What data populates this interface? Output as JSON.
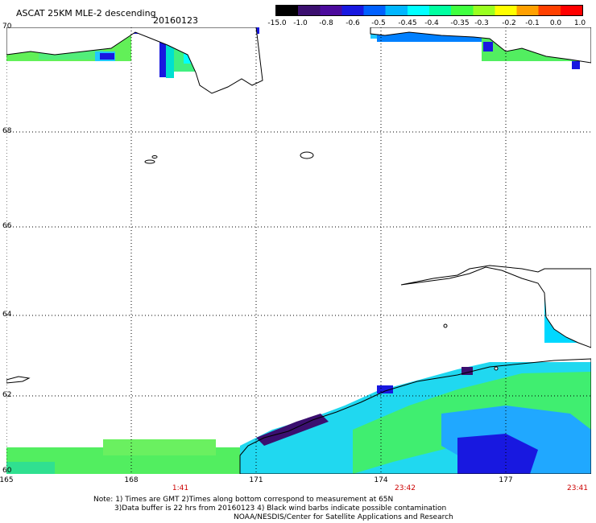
{
  "header": {
    "title": "ASCAT 25KM MLE-2 descending",
    "date": "20160123"
  },
  "colorbar": {
    "labels": [
      "-15.0",
      "-1.0",
      "-0.8",
      "-0.6",
      "-0.5",
      "-0.45",
      "-0.4",
      "-0.35",
      "-0.3",
      "-0.2",
      "-0.1",
      "0.0",
      "1.0"
    ],
    "colors": [
      "#000000",
      "#3b0f6f",
      "#4b0a9c",
      "#1818e0",
      "#0060ff",
      "#00b6ff",
      "#00ffff",
      "#00ffa0",
      "#40ff40",
      "#9aff20",
      "#ffff00",
      "#ffa000",
      "#ff4000",
      "#ff0000"
    ]
  },
  "map": {
    "latitudes": [
      "70",
      "68",
      "66",
      "64",
      "62",
      "60"
    ],
    "longitudes": [
      "165",
      "168",
      "171",
      "174",
      "177"
    ],
    "times": [
      "1:41",
      "23:42",
      "23:41"
    ],
    "land_color": "#ffffff",
    "grid_color": "#000000"
  },
  "footer": {
    "line1": "Note: 1) Times are GMT 2)Times along bottom correspond to measurement at 65N",
    "line2": "3)Data buffer is 22 hrs from 20160123 4) Black wind barbs indicate possible contamination",
    "line3": "NOAA/NESDIS/Center for Satellite Applications and Research"
  }
}
